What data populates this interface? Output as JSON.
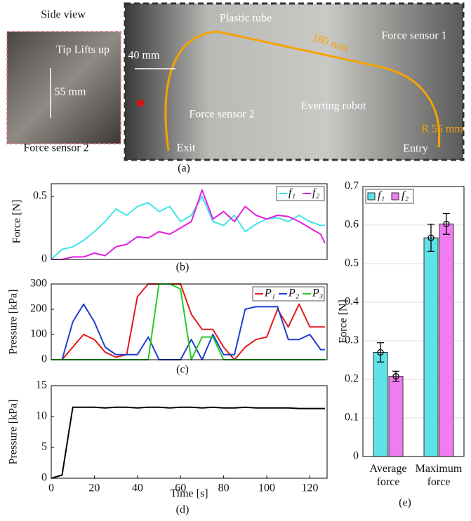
{
  "figure": {
    "panel_a": {
      "label": "(a)",
      "side_view": {
        "title": "Side view",
        "annotations": [
          "Tip Lifts up",
          "55 mm",
          "Force sensor 2"
        ]
      },
      "main_view": {
        "annotations": [
          "Plastic tube",
          "180 mm",
          "Force sensor 1",
          "40 mm",
          "Force sensor 2",
          "Everting robot",
          "R 55 mm",
          "Exit",
          "Entry"
        ]
      }
    }
  },
  "chart_data": [
    {
      "type": "line",
      "panel_label": "(b)",
      "ylabel": "Force [N]",
      "xlim": [
        0,
        128
      ],
      "ylim": [
        0,
        0.6
      ],
      "yticks": [
        0,
        0.5
      ],
      "legend": "upper right",
      "x": [
        0,
        5,
        10,
        15,
        20,
        25,
        30,
        35,
        40,
        45,
        50,
        55,
        60,
        65,
        70,
        75,
        80,
        85,
        90,
        95,
        100,
        105,
        110,
        115,
        120,
        125,
        127
      ],
      "series": [
        {
          "name": "f₁",
          "color": "#3ee6e6",
          "values": [
            0,
            0.08,
            0.1,
            0.15,
            0.22,
            0.3,
            0.4,
            0.35,
            0.42,
            0.45,
            0.38,
            0.42,
            0.3,
            0.35,
            0.5,
            0.3,
            0.27,
            0.35,
            0.22,
            0.28,
            0.32,
            0.33,
            0.3,
            0.35,
            0.3,
            0.27,
            0.27
          ]
        },
        {
          "name": "f₂",
          "color": "#e020e0",
          "values": [
            0,
            0,
            0.02,
            0.02,
            0.05,
            0.03,
            0.1,
            0.12,
            0.18,
            0.17,
            0.22,
            0.2,
            0.25,
            0.3,
            0.55,
            0.32,
            0.38,
            0.3,
            0.42,
            0.35,
            0.32,
            0.35,
            0.34,
            0.3,
            0.25,
            0.2,
            0.13
          ]
        }
      ]
    },
    {
      "type": "line",
      "panel_label": "(c)",
      "ylabel": "Pressure [kPa]",
      "xlim": [
        0,
        128
      ],
      "ylim": [
        0,
        300
      ],
      "yticks": [
        0,
        100,
        200,
        300
      ],
      "legend": "upper right",
      "x": [
        0,
        5,
        10,
        15,
        20,
        25,
        30,
        35,
        40,
        45,
        50,
        55,
        60,
        65,
        70,
        75,
        80,
        85,
        90,
        95,
        100,
        105,
        110,
        115,
        120,
        125,
        127
      ],
      "series": [
        {
          "name": "P₁",
          "color": "#e31a1c",
          "values": [
            0,
            0,
            50,
            100,
            80,
            30,
            10,
            20,
            250,
            300,
            300,
            300,
            300,
            180,
            120,
            120,
            50,
            0,
            50,
            80,
            90,
            200,
            130,
            220,
            130,
            130,
            130
          ]
        },
        {
          "name": "P₂",
          "color": "#1f3fd0",
          "values": [
            0,
            0,
            150,
            220,
            150,
            50,
            20,
            20,
            20,
            90,
            0,
            0,
            0,
            80,
            0,
            100,
            20,
            20,
            200,
            210,
            210,
            210,
            80,
            80,
            100,
            40,
            40
          ]
        },
        {
          "name": "P₃",
          "color": "#22cc22",
          "values": [
            0,
            0,
            0,
            0,
            0,
            0,
            0,
            0,
            0,
            0,
            300,
            300,
            280,
            0,
            90,
            90,
            0,
            0,
            0,
            0,
            0,
            0,
            0,
            0,
            0,
            0,
            0
          ]
        }
      ]
    },
    {
      "type": "line",
      "panel_label": "(d)",
      "ylabel": "Pressure [kPa]",
      "xlabel": "Time [s]",
      "xlim": [
        0,
        128
      ],
      "xticks": [
        0,
        20,
        40,
        60,
        80,
        100,
        120
      ],
      "ylim": [
        0,
        15
      ],
      "yticks": [
        0,
        5,
        10,
        15
      ],
      "x": [
        0,
        5,
        10,
        15,
        20,
        25,
        30,
        35,
        40,
        45,
        50,
        55,
        60,
        65,
        70,
        75,
        80,
        85,
        90,
        95,
        100,
        105,
        110,
        115,
        120,
        125,
        127
      ],
      "series": [
        {
          "color": "#000000",
          "values": [
            0,
            0.5,
            11.5,
            11.5,
            11.5,
            11.4,
            11.5,
            11.5,
            11.4,
            11.5,
            11.5,
            11.4,
            11.5,
            11.5,
            11.4,
            11.5,
            11.4,
            11.4,
            11.5,
            11.4,
            11.4,
            11.4,
            11.4,
            11.3,
            11.3,
            11.3,
            11.3
          ]
        }
      ]
    },
    {
      "type": "bar",
      "panel_label": "(e)",
      "ylabel": "Force [N]",
      "ylim": [
        0,
        0.7
      ],
      "yticks": [
        0,
        0.1,
        0.2,
        0.3,
        0.4,
        0.5,
        0.6,
        0.7
      ],
      "grid": true,
      "legend": "upper left",
      "categories": [
        "Average force",
        "Maximum force"
      ],
      "series": [
        {
          "name": "f₁",
          "color": "#5ee3e8",
          "values": [
            0.27,
            0.567
          ],
          "errors": [
            0.025,
            0.035
          ]
        },
        {
          "name": "f₂",
          "color": "#f07cf0",
          "values": [
            0.208,
            0.603
          ],
          "errors": [
            0.013,
            0.027
          ]
        }
      ]
    }
  ]
}
